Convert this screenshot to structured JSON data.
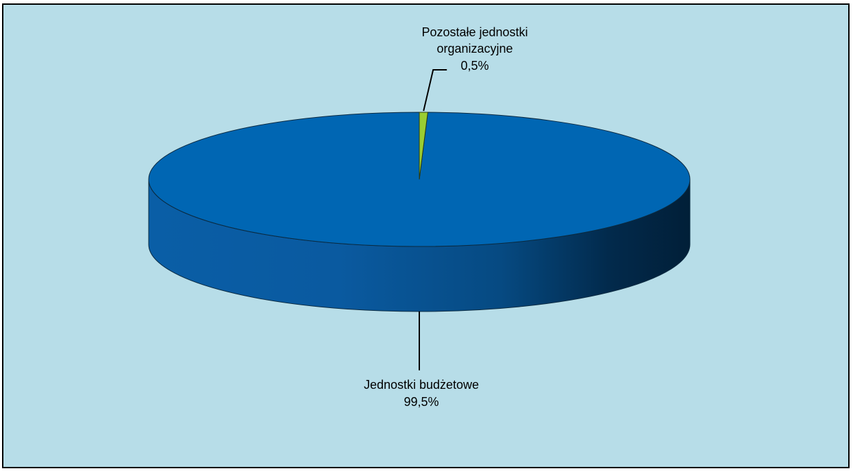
{
  "chart_data": {
    "type": "pie",
    "style": "3d",
    "slices": [
      {
        "label_lines": [
          "Jednostki budżetowe"
        ],
        "value_label": "99,5%",
        "value": 99.5,
        "color": "#0066b3"
      },
      {
        "label_lines": [
          "Pozostałe jednostki",
          "organizacyjne"
        ],
        "value_label": "0,5%",
        "value": 0.5,
        "color": "#9acd32"
      }
    ],
    "background_color": "#b7dde8",
    "legend": "none"
  }
}
